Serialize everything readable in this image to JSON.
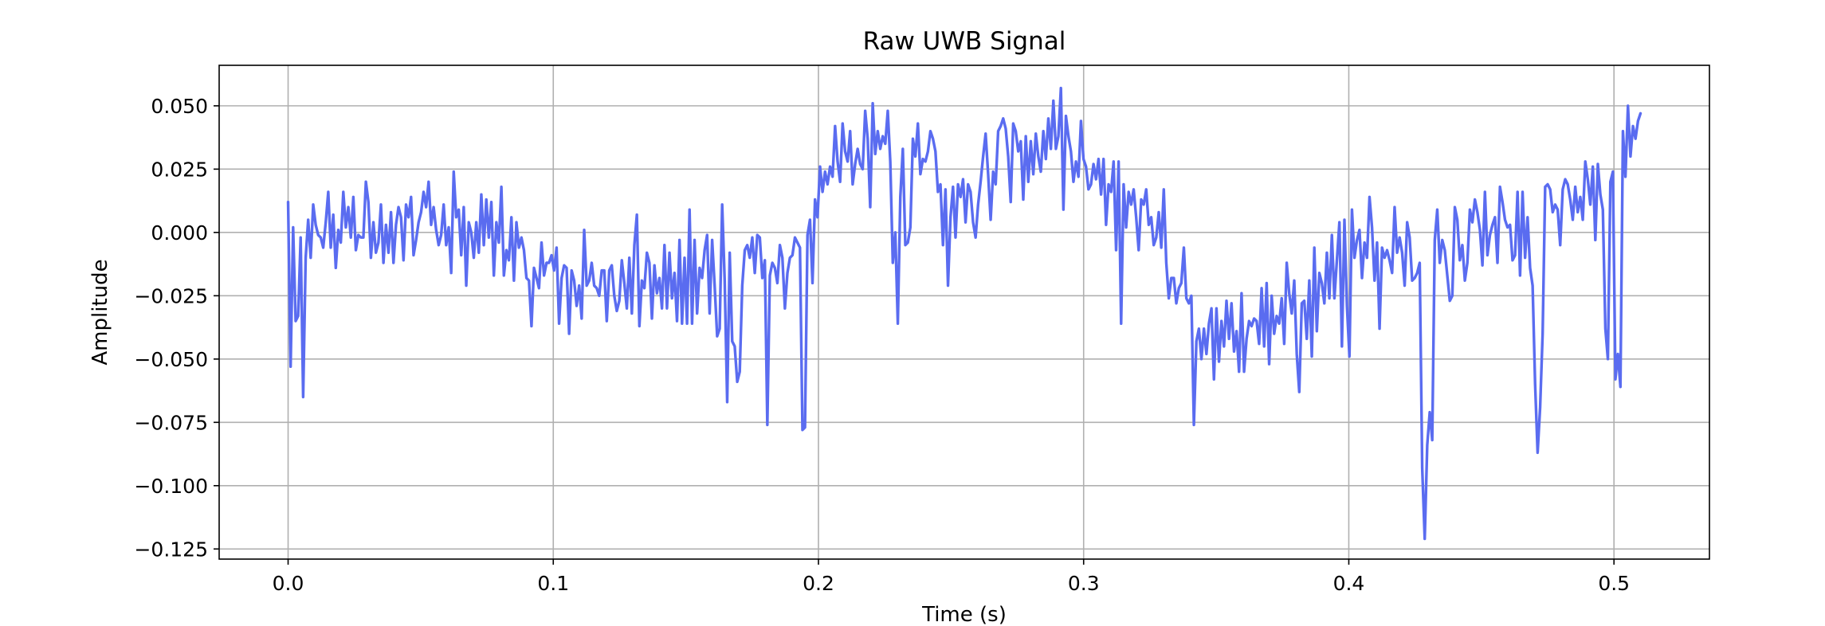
{
  "chart_data": {
    "type": "line",
    "title": "Raw UWB Signal",
    "xlabel": "Time (s)",
    "ylabel": "Amplitude",
    "xlim": [
      -0.026,
      0.536
    ],
    "ylim": [
      -0.129,
      0.066
    ],
    "grid": true,
    "line_color": "#5a6cf0",
    "xticks": [
      0.0,
      0.1,
      0.2,
      0.3,
      0.4,
      0.5
    ],
    "xtick_labels": [
      "0.0",
      "0.1",
      "0.2",
      "0.3",
      "0.4",
      "0.5"
    ],
    "yticks": [
      0.05,
      0.025,
      0.0,
      -0.025,
      -0.05,
      -0.075,
      -0.1,
      -0.125
    ],
    "ytick_labels": [
      "0.050",
      "0.025",
      "0.000",
      "−0.025",
      "−0.050",
      "−0.075",
      "−0.100",
      "−0.125"
    ],
    "series": [
      {
        "name": "UWB signal",
        "x_start": 0.0,
        "x_end": 0.51,
        "values": [
          0.012,
          -0.053,
          0.002,
          -0.035,
          -0.033,
          -0.002,
          -0.065,
          -0.01,
          0.005,
          -0.01,
          0.011,
          0.003,
          -0.001,
          -0.002,
          -0.006,
          0.004,
          0.016,
          -0.006,
          0.007,
          -0.014,
          0.001,
          -0.004,
          0.016,
          0.002,
          0.01,
          -0.002,
          0.014,
          -0.007,
          -0.001,
          -0.002,
          -0.002,
          0.02,
          0.012,
          -0.01,
          0.004,
          -0.008,
          -0.004,
          0.011,
          -0.012,
          0.003,
          -0.008,
          0.008,
          -0.012,
          0.003,
          0.01,
          0.006,
          -0.011,
          0.011,
          0.006,
          0.014,
          -0.009,
          -0.003,
          0.004,
          0.008,
          0.016,
          0.01,
          0.02,
          0.003,
          0.01,
          0.001,
          -0.005,
          -0.001,
          0.011,
          -0.005,
          0.002,
          -0.016,
          0.024,
          0.006,
          0.009,
          -0.009,
          0.01,
          -0.021,
          0.004,
          0.0,
          -0.01,
          0.004,
          -0.008,
          0.015,
          -0.005,
          0.013,
          -0.002,
          0.012,
          -0.017,
          0.004,
          -0.004,
          0.018,
          -0.017,
          -0.007,
          -0.011,
          0.006,
          -0.019,
          0.004,
          -0.006,
          -0.002,
          -0.007,
          -0.018,
          -0.019,
          -0.037,
          -0.014,
          -0.018,
          -0.022,
          -0.004,
          -0.017,
          -0.012,
          -0.012,
          -0.009,
          -0.015,
          -0.006,
          -0.036,
          -0.018,
          -0.013,
          -0.014,
          -0.04,
          -0.015,
          -0.019,
          -0.029,
          -0.021,
          -0.034,
          0.001,
          -0.021,
          -0.019,
          -0.012,
          -0.021,
          -0.022,
          -0.025,
          -0.015,
          -0.015,
          -0.035,
          -0.015,
          -0.013,
          -0.025,
          -0.031,
          -0.027,
          -0.011,
          -0.02,
          -0.03,
          -0.01,
          -0.032,
          -0.005,
          0.007,
          -0.037,
          -0.019,
          -0.022,
          -0.008,
          -0.012,
          -0.034,
          -0.013,
          -0.024,
          -0.018,
          -0.03,
          -0.005,
          -0.03,
          -0.008,
          -0.026,
          -0.016,
          -0.035,
          -0.003,
          -0.036,
          -0.01,
          -0.036,
          0.009,
          -0.036,
          -0.003,
          -0.032,
          -0.014,
          -0.018,
          -0.007,
          -0.001,
          -0.032,
          -0.003,
          -0.021,
          -0.041,
          -0.038,
          0.011,
          -0.019,
          -0.067,
          -0.008,
          -0.043,
          -0.045,
          -0.059,
          -0.055,
          -0.021,
          -0.007,
          -0.005,
          -0.01,
          -0.002,
          -0.016,
          -0.001,
          -0.002,
          -0.018,
          -0.011,
          -0.076,
          -0.017,
          -0.012,
          -0.014,
          -0.02,
          -0.005,
          -0.01,
          -0.03,
          -0.016,
          -0.01,
          -0.009,
          -0.002,
          -0.004,
          -0.006,
          -0.078,
          -0.077,
          -0.001,
          0.005,
          -0.02,
          0.013,
          0.006,
          0.026,
          0.016,
          0.024,
          0.019,
          0.026,
          0.022,
          0.042,
          0.028,
          0.02,
          0.043,
          0.032,
          0.028,
          0.04,
          0.019,
          0.027,
          0.033,
          0.027,
          0.025,
          0.048,
          0.037,
          0.01,
          0.051,
          0.031,
          0.04,
          0.033,
          0.038,
          0.035,
          0.048,
          0.028,
          -0.012,
          0.0,
          -0.036,
          0.014,
          0.033,
          -0.005,
          -0.004,
          0.002,
          0.037,
          0.03,
          0.043,
          0.023,
          0.029,
          0.028,
          0.032,
          0.04,
          0.037,
          0.032,
          0.016,
          0.019,
          -0.005,
          0.017,
          -0.021,
          0.006,
          0.018,
          -0.002,
          0.019,
          0.014,
          0.021,
          0.004,
          0.019,
          0.016,
          0.004,
          -0.002,
          0.011,
          0.02,
          0.03,
          0.039,
          0.023,
          0.005,
          0.024,
          0.019,
          0.04,
          0.042,
          0.045,
          0.041,
          0.03,
          0.012,
          0.043,
          0.04,
          0.032,
          0.036,
          0.013,
          0.038,
          0.02,
          0.036,
          0.023,
          0.039,
          0.03,
          0.024,
          0.04,
          0.029,
          0.045,
          0.033,
          0.052,
          0.033,
          0.038,
          0.057,
          0.009,
          0.046,
          0.038,
          0.032,
          0.02,
          0.028,
          0.022,
          0.044,
          0.029,
          0.026,
          0.017,
          0.019,
          0.027,
          0.021,
          0.029,
          0.015,
          0.029,
          0.003,
          0.019,
          0.016,
          0.028,
          -0.007,
          0.028,
          -0.036,
          0.019,
          0.002,
          0.016,
          0.011,
          0.017,
          0.006,
          -0.007,
          0.013,
          0.011,
          0.017,
          0.003,
          0.006,
          -0.005,
          -0.002,
          0.008,
          -0.006,
          0.017,
          -0.012,
          -0.026,
          -0.018,
          -0.018,
          -0.028,
          -0.022,
          -0.02,
          -0.006,
          -0.026,
          -0.028,
          -0.025,
          -0.076,
          -0.043,
          -0.038,
          -0.05,
          -0.038,
          -0.048,
          -0.036,
          -0.03,
          -0.058,
          -0.03,
          -0.051,
          -0.035,
          -0.045,
          -0.027,
          -0.042,
          -0.028,
          -0.047,
          -0.039,
          -0.055,
          -0.024,
          -0.055,
          -0.042,
          -0.035,
          -0.037,
          -0.034,
          -0.035,
          -0.044,
          -0.022,
          -0.045,
          -0.02,
          -0.052,
          -0.025,
          -0.04,
          -0.033,
          -0.036,
          -0.026,
          -0.044,
          -0.012,
          -0.024,
          -0.032,
          -0.019,
          -0.048,
          -0.063,
          -0.028,
          -0.027,
          -0.042,
          -0.019,
          -0.049,
          -0.006,
          -0.039,
          -0.016,
          -0.02,
          -0.028,
          -0.008,
          -0.026,
          -0.001,
          -0.026,
          -0.011,
          0.004,
          -0.045,
          0.005,
          -0.029,
          -0.049,
          0.009,
          -0.01,
          -0.003,
          0.001,
          -0.018,
          -0.004,
          -0.01,
          0.014,
          0.002,
          -0.019,
          -0.004,
          -0.038,
          -0.006,
          -0.01,
          -0.007,
          -0.011,
          -0.016,
          0.01,
          -0.008,
          -0.002,
          -0.008,
          -0.021,
          0.004,
          -0.002,
          -0.019,
          -0.018,
          -0.016,
          -0.012,
          -0.093,
          -0.121,
          -0.084,
          -0.071,
          -0.082,
          -0.003,
          0.009,
          -0.012,
          -0.003,
          -0.007,
          -0.017,
          -0.027,
          -0.025,
          0.01,
          0.005,
          -0.011,
          -0.005,
          -0.019,
          -0.012,
          0.009,
          0.004,
          0.013,
          0.008,
          0.001,
          -0.013,
          0.016,
          -0.009,
          -0.001,
          0.003,
          0.006,
          -0.012,
          0.018,
          0.012,
          0.005,
          0.002,
          0.003,
          -0.011,
          -0.009,
          0.016,
          -0.017,
          0.016,
          -0.01,
          0.006,
          -0.014,
          -0.021,
          -0.06,
          -0.087,
          -0.069,
          -0.04,
          0.018,
          0.019,
          0.017,
          0.008,
          0.011,
          0.009,
          -0.005,
          0.017,
          0.021,
          0.019,
          0.013,
          0.005,
          0.018,
          0.008,
          0.014,
          0.005,
          0.028,
          0.021,
          0.011,
          0.026,
          -0.003,
          0.027,
          0.015,
          0.009,
          -0.038,
          -0.05,
          0.02,
          0.024,
          -0.058,
          -0.048,
          -0.061,
          0.04,
          0.022,
          0.05,
          0.03,
          0.042,
          0.037,
          0.044,
          0.047
        ]
      }
    ]
  }
}
